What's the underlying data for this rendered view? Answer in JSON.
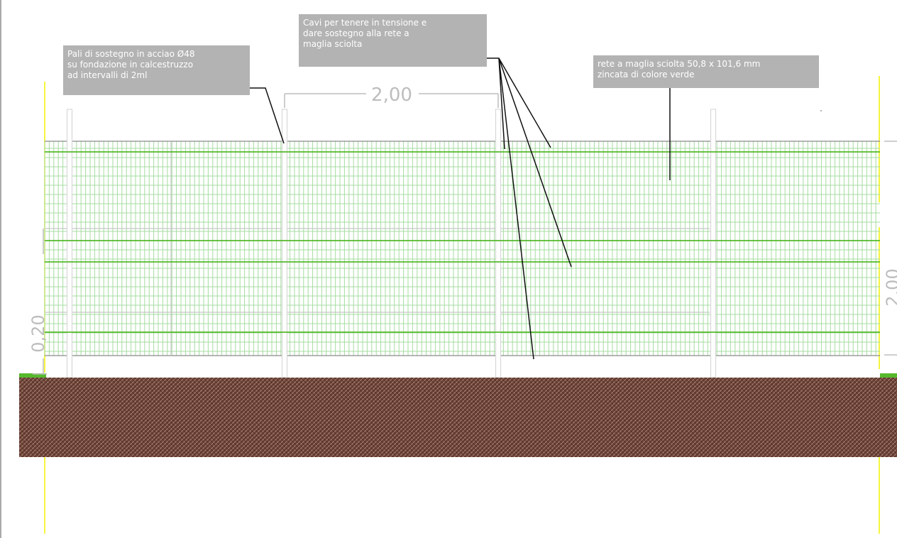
{
  "callouts": {
    "posts": {
      "lines": [
        "Pali di sostegno in acciao Ø48",
        "su fondazione in calcestruzzo",
        "ad intervalli di 2ml"
      ]
    },
    "cables": {
      "lines": [
        "Cavi per tenere in tensione e",
        "dare sostegno alla rete a",
        "maglia sciolta"
      ]
    },
    "mesh": {
      "lines": [
        "rete a maglia sciolta 50,8 x 101,6 mm",
        "zincata di colore verde"
      ]
    }
  },
  "dimensions": {
    "post_spacing": "2,00",
    "footing_depth": "0,20",
    "fence_height": "2,00"
  },
  "colors": {
    "mesh_line": "#a6dca0",
    "cable": "#55b92c",
    "ground": "#7a4a3c",
    "post": "#d8d8d8",
    "callout_bg": "#b3b3b3",
    "axis": "#ffff33"
  }
}
